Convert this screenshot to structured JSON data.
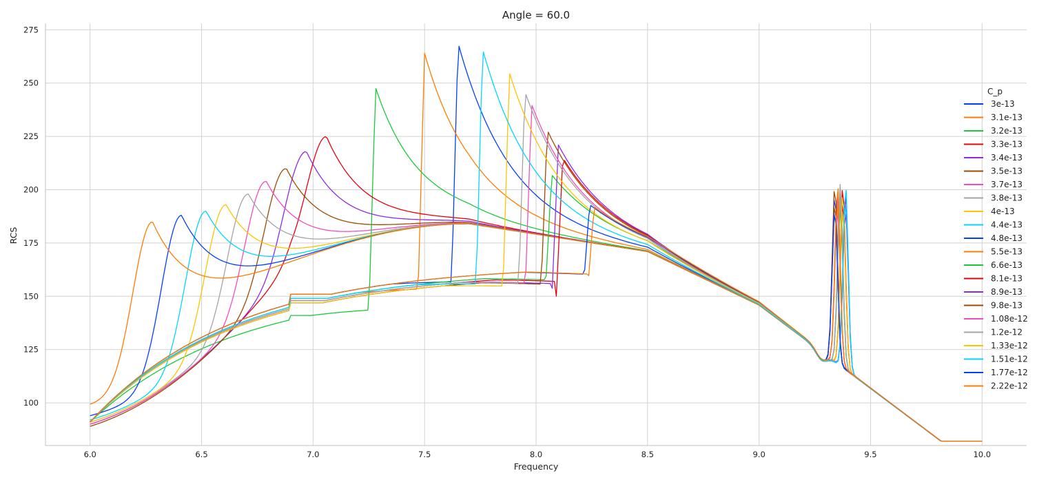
{
  "chart_data": {
    "type": "line",
    "title": "Angle = 60.0",
    "xlabel": "Frequency",
    "ylabel": "RCS",
    "xlim": [
      5.8,
      10.2
    ],
    "ylim": [
      80,
      278
    ],
    "xticks": [
      6.0,
      6.5,
      7.0,
      7.5,
      8.0,
      8.5,
      9.0,
      9.5,
      10.0
    ],
    "xtick_labels": [
      "6.0",
      "6.5",
      "7.0",
      "7.5",
      "8.0",
      "8.5",
      "9.0",
      "9.5",
      "10.0"
    ],
    "yticks": [
      100,
      125,
      150,
      175,
      200,
      225,
      250,
      275
    ],
    "ytick_labels": [
      "100",
      "125",
      "150",
      "175",
      "200",
      "225",
      "250",
      "275"
    ],
    "grid": true,
    "legend_title": "C_p",
    "legend_position": "right",
    "series": [
      {
        "name": "3e-13",
        "color": "#023eff",
        "f0": 7.65,
        "peak": 269,
        "lower": true,
        "floor": 151,
        "baseY": 91
      },
      {
        "name": "3.1e-13",
        "color": "#ff7c00",
        "f0": 7.5,
        "peak": 264,
        "lower": true,
        "floor": 149,
        "baseY": 91
      },
      {
        "name": "3.2e-13",
        "color": "#1ac938",
        "f0": 7.28,
        "peak": 248,
        "lower": true,
        "floor": 141,
        "baseY": 90
      },
      {
        "name": "3.3e-13",
        "color": "#e8000b",
        "f0": 7.06,
        "peak": 225,
        "lower": false,
        "baseY": 90
      },
      {
        "name": "3.4e-13",
        "color": "#8b2be2",
        "f0": 6.97,
        "peak": 218,
        "lower": false,
        "baseY": 90
      },
      {
        "name": "3.5e-13",
        "color": "#9f4800",
        "f0": 6.88,
        "peak": 210,
        "lower": false,
        "baseY": 89
      },
      {
        "name": "3.7e-13",
        "color": "#f14cc1",
        "f0": 6.79,
        "peak": 204,
        "lower": false,
        "baseY": 90
      },
      {
        "name": "3.8e-13",
        "color": "#a3a3a3",
        "f0": 6.71,
        "peak": 198,
        "lower": false,
        "baseY": 91
      },
      {
        "name": "4e-13",
        "color": "#ffc400",
        "f0": 6.61,
        "peak": 193,
        "lower": false,
        "baseY": 91
      },
      {
        "name": "4.4e-13",
        "color": "#00d7ff",
        "f0": 6.52,
        "peak": 190,
        "lower": false,
        "baseY": 92
      },
      {
        "name": "4.8e-13",
        "color": "#023eff",
        "f0": 6.41,
        "peak": 188,
        "lower": false,
        "baseY": 94
      },
      {
        "name": "5.5e-13",
        "color": "#ff7c00",
        "f0": 6.28,
        "peak": 185,
        "lower": false,
        "baseY": 99
      },
      {
        "name": "6.6e-13",
        "color": "#1ac938",
        "f0": 8.07,
        "peak": 207,
        "lower": true,
        "floor": 149,
        "baseY": 91
      },
      {
        "name": "8.1e-13",
        "color": "#e8000b",
        "f0": 8.12,
        "peak": 215,
        "lower": true,
        "floor": 148,
        "baseY": 90
      },
      {
        "name": "8.9e-13",
        "color": "#8b2be2",
        "f0": 8.1,
        "peak": 221,
        "lower": true,
        "floor": 147,
        "baseY": 90
      },
      {
        "name": "9.8e-13",
        "color": "#9f4800",
        "f0": 8.05,
        "peak": 228,
        "lower": true,
        "floor": 147,
        "baseY": 89
      },
      {
        "name": "1.08e-12",
        "color": "#f14cc1",
        "f0": 7.98,
        "peak": 240,
        "lower": true,
        "floor": 148,
        "baseY": 90
      },
      {
        "name": "1.2e-12",
        "color": "#a3a3a3",
        "f0": 7.95,
        "peak": 246,
        "lower": true,
        "floor": 148,
        "baseY": 91
      },
      {
        "name": "1.33e-12",
        "color": "#ffc400",
        "f0": 7.88,
        "peak": 255,
        "lower": true,
        "floor": 147,
        "baseY": 91
      },
      {
        "name": "1.51e-12",
        "color": "#00d7ff",
        "f0": 7.76,
        "peak": 266,
        "lower": true,
        "floor": 149,
        "baseY": 92
      },
      {
        "name": "1.77e-12",
        "color": "#023eff",
        "f0": 8.24,
        "peak": 193,
        "lower": true,
        "floor": 151,
        "baseY": 91
      },
      {
        "name": "2.22e-12",
        "color": "#ff7c00",
        "f0": 8.26,
        "peak": 192,
        "lower": true,
        "floor": 151,
        "baseY": 90
      }
    ]
  }
}
